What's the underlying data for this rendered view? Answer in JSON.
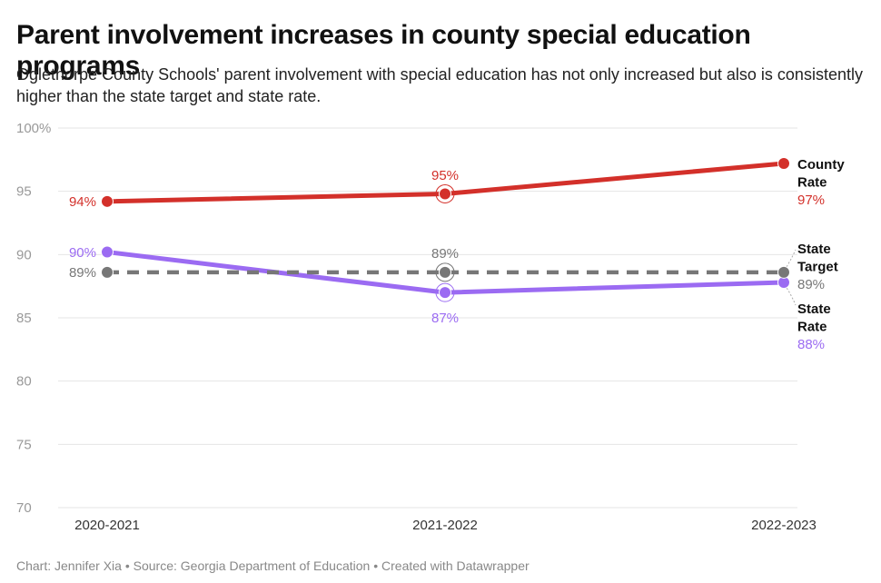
{
  "title": "Parent involvement increases in county special education programs",
  "subtitle": "Oglethorpe County Schools' parent involvement with special education has not only increased but also is consistently higher than the state target and state rate.",
  "footer": "Chart: Jennifer Xia • Source: Georgia Department of Education • Created with Datawrapper",
  "colors": {
    "county": "#d3302a",
    "target": "#777777",
    "state": "#9b6bf2",
    "grid": "#e4e4e4",
    "tick": "#999999"
  },
  "chart_data": {
    "type": "line",
    "x": [
      "2020-2021",
      "2021-2022",
      "2022-2023"
    ],
    "ylim": [
      70,
      100
    ],
    "yticks": [
      {
        "value": 100,
        "label": "100%"
      },
      {
        "value": 95,
        "label": "95"
      },
      {
        "value": 90,
        "label": "90"
      },
      {
        "value": 85,
        "label": "85"
      },
      {
        "value": 80,
        "label": "80"
      },
      {
        "value": 75,
        "label": "75"
      },
      {
        "value": 70,
        "label": "70"
      }
    ],
    "grid": true,
    "series": [
      {
        "id": "county",
        "name": [
          "County",
          "Rate"
        ],
        "values": [
          94.2,
          94.8,
          97.2
        ],
        "point_labels": [
          "94%",
          "95%",
          "97%"
        ],
        "dashed": false
      },
      {
        "id": "target",
        "name": [
          "State",
          "Target"
        ],
        "values": [
          88.6,
          88.6,
          88.6
        ],
        "point_labels": [
          "89%",
          "89%",
          "89%"
        ],
        "dashed": true
      },
      {
        "id": "state",
        "name": [
          "State",
          "Rate"
        ],
        "values": [
          90.2,
          87.0,
          87.8
        ],
        "point_labels": [
          "90%",
          "87%",
          "88%"
        ],
        "dashed": false
      }
    ]
  }
}
